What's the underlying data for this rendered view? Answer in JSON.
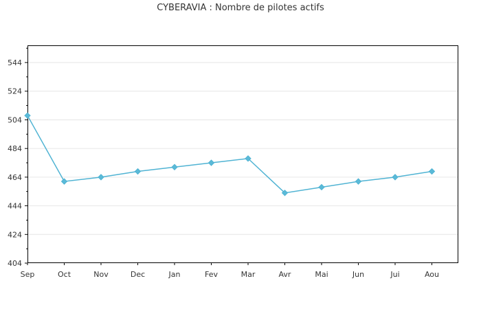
{
  "chart_data": {
    "type": "line",
    "title": "CYBERAVIA : Nombre de pilotes actifs",
    "xlabel": "",
    "ylabel": "",
    "categories": [
      "Sep",
      "Oct",
      "Nov",
      "Dec",
      "Jan",
      "Fev",
      "Mar",
      "Avr",
      "Mai",
      "Jun",
      "Jui",
      "Aou"
    ],
    "series": [
      {
        "values": [
          507,
          461,
          464,
          468,
          471,
          474,
          477,
          453,
          457,
          461,
          464,
          468
        ]
      }
    ],
    "ylim": [
      404,
      556
    ],
    "yticks": [
      404,
      424,
      444,
      464,
      484,
      504,
      524,
      544
    ],
    "grid": true,
    "legend": "none",
    "colors": {
      "line": "#4fb3d3",
      "marker": "#5bbad8",
      "grid": "#e6e6e6",
      "axis": "#000000"
    }
  }
}
